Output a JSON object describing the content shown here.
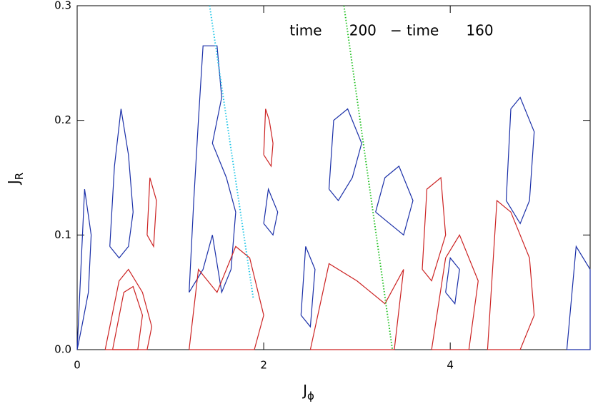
{
  "chart_data": {
    "type": "contour",
    "title": "time      200   − time      160",
    "x_label": "J",
    "x_label_subscript": "ϕ",
    "y_label": "J",
    "y_label_subscript": "R",
    "xlim": [
      0,
      5.5
    ],
    "ylim": [
      0,
      0.3
    ],
    "xticks": [
      0,
      2,
      4
    ],
    "yticks": [
      {
        "value": 0,
        "label": "0.0"
      },
      0.1,
      0.2,
      0.3
    ],
    "guides": [
      {
        "color": "#22c6e6",
        "x": [
          1.42,
          1.89
        ],
        "y": [
          0.3,
          0.044
        ]
      },
      {
        "color": "#22c122",
        "x": [
          2.86,
          3.38
        ],
        "y": [
          0.3,
          0.0
        ]
      }
    ],
    "contours": [
      {
        "color": "#1a2fa8",
        "x": [
          1.2,
          1.25,
          1.3,
          1.35,
          1.5,
          1.55,
          1.45,
          1.6,
          1.7,
          1.65,
          1.55,
          1.45,
          1.35,
          1.2
        ],
        "y": [
          0.05,
          0.13,
          0.2,
          0.265,
          0.265,
          0.22,
          0.18,
          0.15,
          0.12,
          0.07,
          0.05,
          0.1,
          0.07,
          0.05
        ]
      },
      {
        "color": "#1a2fa8",
        "x": [
          0.35,
          0.4,
          0.47,
          0.55,
          0.6,
          0.55,
          0.45,
          0.35
        ],
        "y": [
          0.09,
          0.16,
          0.21,
          0.17,
          0.12,
          0.09,
          0.08,
          0.09
        ]
      },
      {
        "color": "#1a2fa8",
        "x": [
          0.0,
          0.08,
          0.15,
          0.12,
          0.05,
          0.0
        ],
        "y": [
          0.0,
          0.14,
          0.1,
          0.05,
          0.02,
          0.0
        ]
      },
      {
        "color": "#1a2fa8",
        "x": [
          2.7,
          2.75,
          2.9,
          3.05,
          2.95,
          2.8,
          2.7
        ],
        "y": [
          0.14,
          0.2,
          0.21,
          0.18,
          0.15,
          0.13,
          0.14
        ]
      },
      {
        "color": "#1a2fa8",
        "x": [
          4.6,
          4.65,
          4.75,
          4.9,
          4.85,
          4.75,
          4.6
        ],
        "y": [
          0.13,
          0.21,
          0.22,
          0.19,
          0.13,
          0.11,
          0.13
        ]
      },
      {
        "color": "#1a2fa8",
        "x": [
          3.2,
          3.3,
          3.45,
          3.6,
          3.5,
          3.35,
          3.2
        ],
        "y": [
          0.12,
          0.15,
          0.16,
          0.13,
          0.1,
          0.11,
          0.12
        ]
      },
      {
        "color": "#1a2fa8",
        "x": [
          2.0,
          2.05,
          2.15,
          2.1,
          2.0
        ],
        "y": [
          0.11,
          0.14,
          0.12,
          0.1,
          0.11
        ]
      },
      {
        "color": "#1a2fa8",
        "x": [
          2.4,
          2.45,
          2.55,
          2.5,
          2.4
        ],
        "y": [
          0.03,
          0.09,
          0.07,
          0.02,
          0.03
        ]
      },
      {
        "color": "#1a2fa8",
        "x": [
          5.25,
          5.35,
          5.5,
          5.5,
          5.3,
          5.25
        ],
        "y": [
          0.0,
          0.09,
          0.07,
          0.0,
          0.0,
          0.0
        ]
      },
      {
        "color": "#1a2fa8",
        "x": [
          3.95,
          4.0,
          4.1,
          4.05,
          3.95
        ],
        "y": [
          0.05,
          0.08,
          0.07,
          0.04,
          0.05
        ]
      },
      {
        "color": "#cc2222",
        "x": [
          0.3,
          0.45,
          0.55,
          0.7,
          0.8,
          0.75,
          0.3
        ],
        "y": [
          0.0,
          0.06,
          0.07,
          0.05,
          0.02,
          0.0,
          0.0
        ]
      },
      {
        "color": "#cc2222",
        "x": [
          0.38,
          0.5,
          0.6,
          0.7,
          0.65,
          0.38
        ],
        "y": [
          0.0,
          0.05,
          0.055,
          0.03,
          0.0,
          0.0
        ]
      },
      {
        "color": "#cc2222",
        "x": [
          1.2,
          1.3,
          1.5,
          1.7,
          1.85,
          2.0,
          1.9,
          1.2
        ],
        "y": [
          0.0,
          0.07,
          0.05,
          0.09,
          0.08,
          0.03,
          0.0,
          0.0
        ]
      },
      {
        "color": "#cc2222",
        "x": [
          2.5,
          2.7,
          3.0,
          3.3,
          3.5,
          3.4,
          2.5
        ],
        "y": [
          0.0,
          0.075,
          0.06,
          0.04,
          0.07,
          0.0,
          0.0
        ]
      },
      {
        "color": "#cc2222",
        "x": [
          3.8,
          3.95,
          4.1,
          4.3,
          4.2,
          3.8
        ],
        "y": [
          0.0,
          0.08,
          0.1,
          0.06,
          0.0,
          0.0
        ]
      },
      {
        "color": "#cc2222",
        "x": [
          4.4,
          4.5,
          4.65,
          4.85,
          4.9,
          4.75,
          4.4
        ],
        "y": [
          0.0,
          0.13,
          0.12,
          0.08,
          0.03,
          0.0,
          0.0
        ]
      },
      {
        "color": "#cc2222",
        "x": [
          2.0,
          2.02,
          2.06,
          2.1,
          2.08,
          2.0
        ],
        "y": [
          0.17,
          0.21,
          0.2,
          0.18,
          0.16,
          0.17
        ]
      },
      {
        "color": "#cc2222",
        "x": [
          0.75,
          0.78,
          0.85,
          0.82,
          0.75
        ],
        "y": [
          0.1,
          0.15,
          0.13,
          0.09,
          0.1
        ]
      },
      {
        "color": "#cc2222",
        "x": [
          3.7,
          3.75,
          3.9,
          3.95,
          3.8,
          3.7
        ],
        "y": [
          0.07,
          0.14,
          0.15,
          0.1,
          0.06,
          0.07
        ]
      }
    ]
  }
}
